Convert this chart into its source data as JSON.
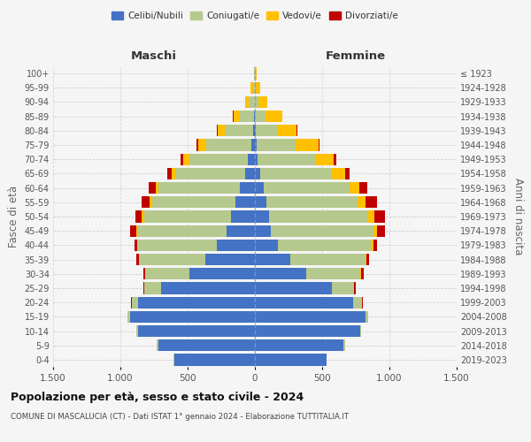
{
  "age_groups": [
    "0-4",
    "5-9",
    "10-14",
    "15-19",
    "20-24",
    "25-29",
    "30-34",
    "35-39",
    "40-44",
    "45-49",
    "50-54",
    "55-59",
    "60-64",
    "65-69",
    "70-74",
    "75-79",
    "80-84",
    "85-89",
    "90-94",
    "95-99",
    "100+"
  ],
  "birth_years": [
    "2019-2023",
    "2014-2018",
    "2009-2013",
    "2004-2008",
    "1999-2003",
    "1994-1998",
    "1989-1993",
    "1984-1988",
    "1979-1983",
    "1974-1978",
    "1969-1973",
    "1964-1968",
    "1959-1963",
    "1954-1958",
    "1949-1953",
    "1944-1948",
    "1939-1943",
    "1934-1938",
    "1929-1933",
    "1924-1928",
    "≤ 1923"
  ],
  "colors": {
    "celibi": "#4472c4",
    "coniugati": "#b5c98e",
    "vedovi": "#ffc000",
    "divorziati": "#c00000"
  },
  "maschi": {
    "celibi": [
      600,
      720,
      870,
      930,
      870,
      700,
      490,
      370,
      280,
      210,
      175,
      145,
      115,
      75,
      50,
      25,
      12,
      6,
      3,
      1,
      1
    ],
    "coniugati": [
      5,
      10,
      10,
      15,
      45,
      120,
      320,
      490,
      590,
      660,
      650,
      620,
      600,
      520,
      440,
      340,
      210,
      105,
      40,
      12,
      4
    ],
    "vedovi": [
      0,
      0,
      0,
      0,
      0,
      2,
      3,
      5,
      8,
      10,
      15,
      15,
      20,
      25,
      40,
      55,
      55,
      50,
      28,
      18,
      4
    ],
    "divorziati": [
      0,
      0,
      0,
      0,
      5,
      10,
      15,
      15,
      20,
      45,
      50,
      65,
      55,
      30,
      20,
      15,
      5,
      3,
      1,
      0,
      0
    ]
  },
  "femmine": {
    "celibi": [
      530,
      660,
      780,
      820,
      730,
      570,
      380,
      260,
      170,
      120,
      105,
      85,
      65,
      40,
      22,
      12,
      6,
      3,
      1,
      0,
      0
    ],
    "coniugati": [
      5,
      10,
      10,
      20,
      65,
      165,
      400,
      560,
      690,
      760,
      740,
      680,
      640,
      530,
      430,
      290,
      160,
      75,
      27,
      8,
      2
    ],
    "vedovi": [
      0,
      0,
      0,
      0,
      2,
      5,
      8,
      10,
      20,
      25,
      40,
      55,
      70,
      100,
      135,
      170,
      145,
      125,
      62,
      32,
      10
    ],
    "divorziati": [
      0,
      0,
      0,
      0,
      5,
      12,
      20,
      20,
      30,
      65,
      85,
      85,
      60,
      35,
      20,
      10,
      5,
      2,
      1,
      0,
      0
    ]
  },
  "xlim": 1500,
  "xticks": [
    -1500,
    -1000,
    -500,
    0,
    500,
    1000,
    1500
  ],
  "xtick_labels": [
    "1.500",
    "1.000",
    "500",
    "0",
    "500",
    "1.000",
    "1.500"
  ],
  "title": "Popolazione per età, sesso e stato civile - 2024",
  "subtitle": "COMUNE DI MASCALUCIA (CT) - Dati ISTAT 1° gennaio 2024 - Elaborazione TUTTITALIA.IT",
  "ylabel_left": "Fasce di età",
  "ylabel_right": "Anni di nascita",
  "header_left": "Maschi",
  "header_right": "Femmine",
  "legend_labels": [
    "Celibi/Nubili",
    "Coniugati/e",
    "Vedovi/e",
    "Divorziati/e"
  ],
  "bg_color": "#f5f5f5",
  "grid_color": "#cccccc"
}
